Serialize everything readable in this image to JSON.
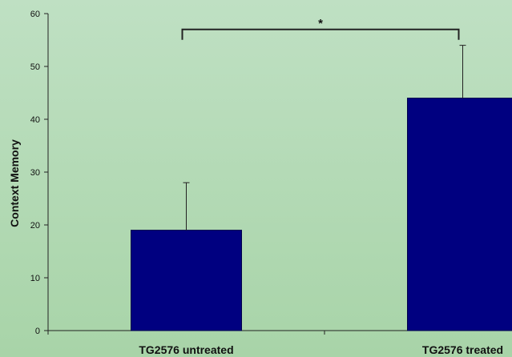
{
  "chart_data": {
    "type": "bar",
    "ylabel": "Context Memory",
    "xlabel": "",
    "ylim": [
      0,
      60
    ],
    "yticks": [
      0,
      10,
      20,
      30,
      40,
      50,
      60
    ],
    "categories": [
      "TG2576 untreated",
      "TG2576 treated"
    ],
    "values": [
      19,
      44
    ],
    "error_upper": [
      28,
      54
    ],
    "bar_color": "#000080",
    "grid": false,
    "significance": {
      "between": [
        0,
        1
      ],
      "y": 57,
      "label": "*"
    }
  }
}
